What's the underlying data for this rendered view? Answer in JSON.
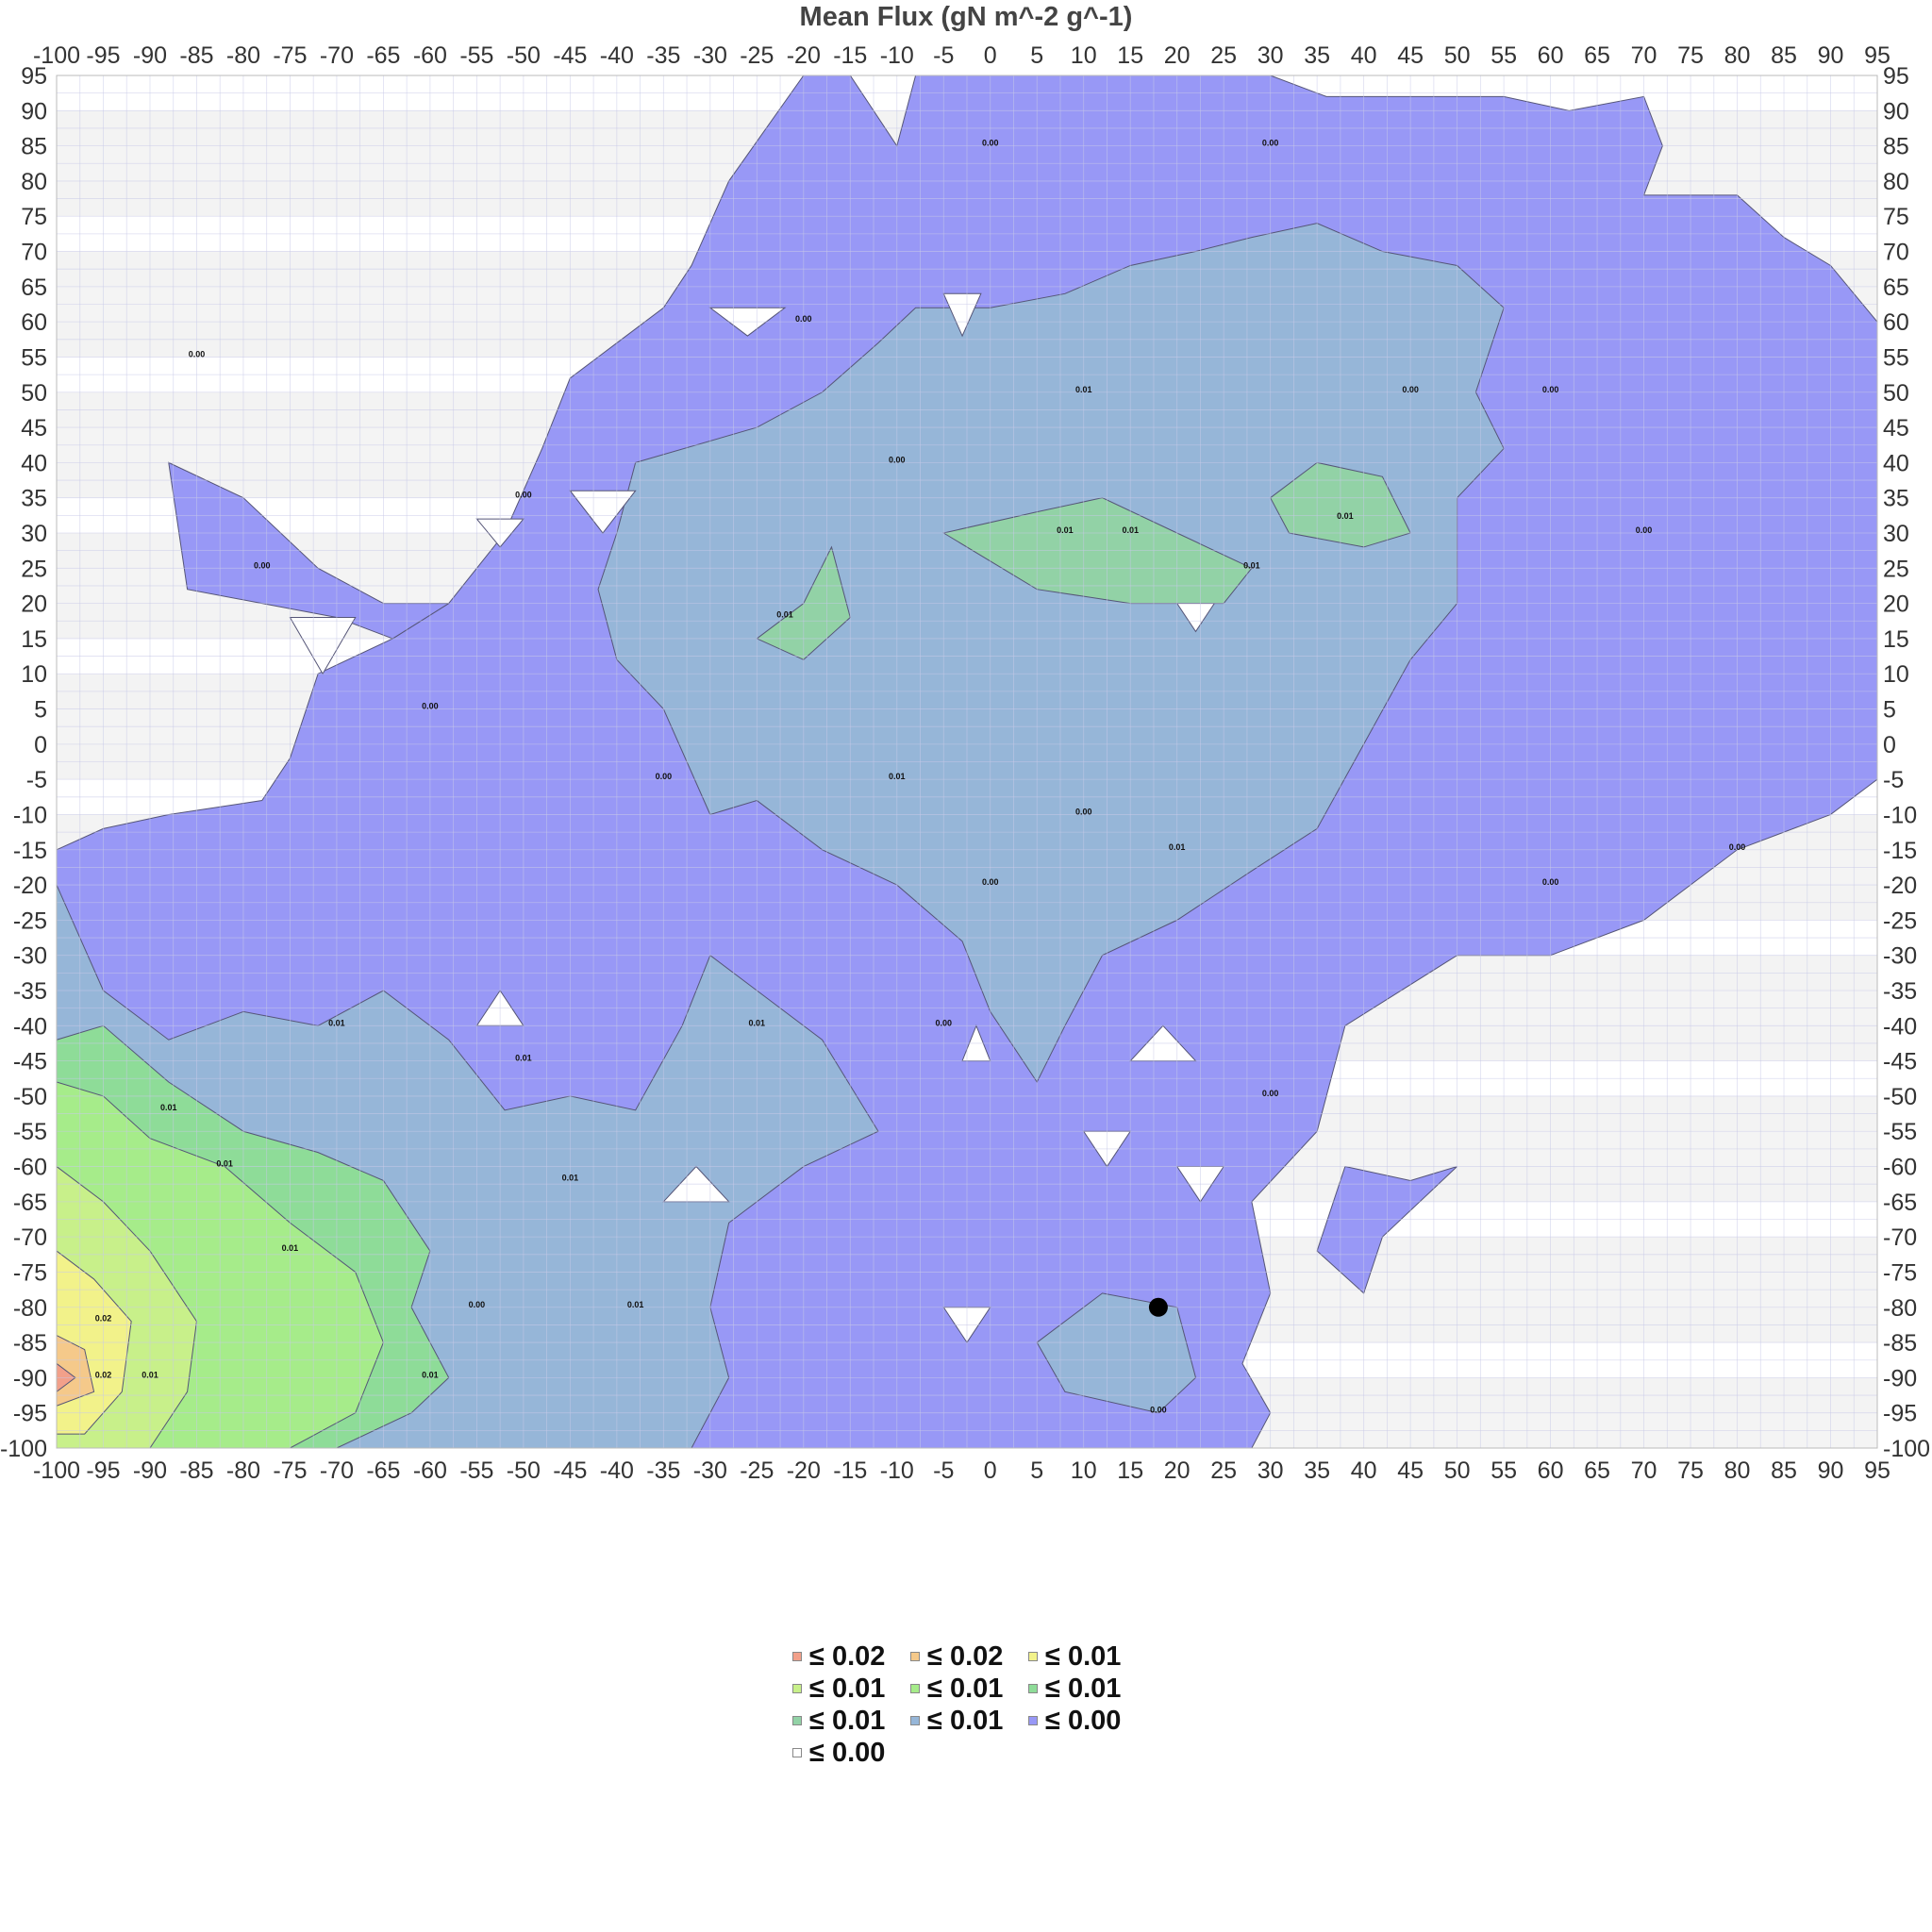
{
  "chart_data": {
    "type": "heatmap",
    "title": "Mean Flux (gN m^-2 g^-1)",
    "xlabel": "",
    "ylabel": "",
    "xlim": [
      -100,
      95
    ],
    "ylim": [
      -100,
      95
    ],
    "x_ticks": [
      "-100",
      "-95",
      "-90",
      "-85",
      "-80",
      "-75",
      "-70",
      "-65",
      "-60",
      "-55",
      "-50",
      "-45",
      "-40",
      "-35",
      "-30",
      "-25",
      "-20",
      "-15",
      "-10",
      "-5",
      "0",
      "5",
      "10",
      "15",
      "20",
      "25",
      "30",
      "35",
      "40",
      "45",
      "50",
      "55",
      "60",
      "65",
      "70",
      "75",
      "80",
      "85",
      "90",
      "95"
    ],
    "y_ticks": [
      "95",
      "90",
      "85",
      "80",
      "75",
      "70",
      "65",
      "60",
      "55",
      "50",
      "45",
      "40",
      "35",
      "30",
      "25",
      "20",
      "15",
      "10",
      "5",
      "0",
      "-5",
      "-10",
      "-15",
      "-20",
      "-25",
      "-30",
      "-35",
      "-40",
      "-45",
      "-50",
      "-55",
      "-60",
      "-65",
      "-70",
      "-75",
      "-80",
      "-85",
      "-90",
      "-95",
      "-100"
    ],
    "grid": true,
    "legend_position": "bottom",
    "legend": [
      {
        "label": "≤ 0.02",
        "color": "#f2a08a"
      },
      {
        "label": "≤ 0.02",
        "color": "#f5c98a"
      },
      {
        "label": "≤ 0.01",
        "color": "#f2f28a"
      },
      {
        "label": "≤ 0.01",
        "color": "#c8f08a"
      },
      {
        "label": "≤ 0.01",
        "color": "#a6ec8a"
      },
      {
        "label": "≤ 0.01",
        "color": "#8edc98"
      },
      {
        "label": "≤ 0.01",
        "color": "#92d2a6"
      },
      {
        "label": "≤ 0.01",
        "color": "#96b6d8"
      },
      {
        "label": "≤ 0.00",
        "color": "#9898f6"
      },
      {
        "label": "≤ 0.00",
        "color": "#ffffff"
      }
    ],
    "contour_labels": [
      "0.00",
      "0.01",
      "0.02"
    ],
    "marker": {
      "x": 18,
      "y": -80,
      "color": "#000000"
    }
  }
}
